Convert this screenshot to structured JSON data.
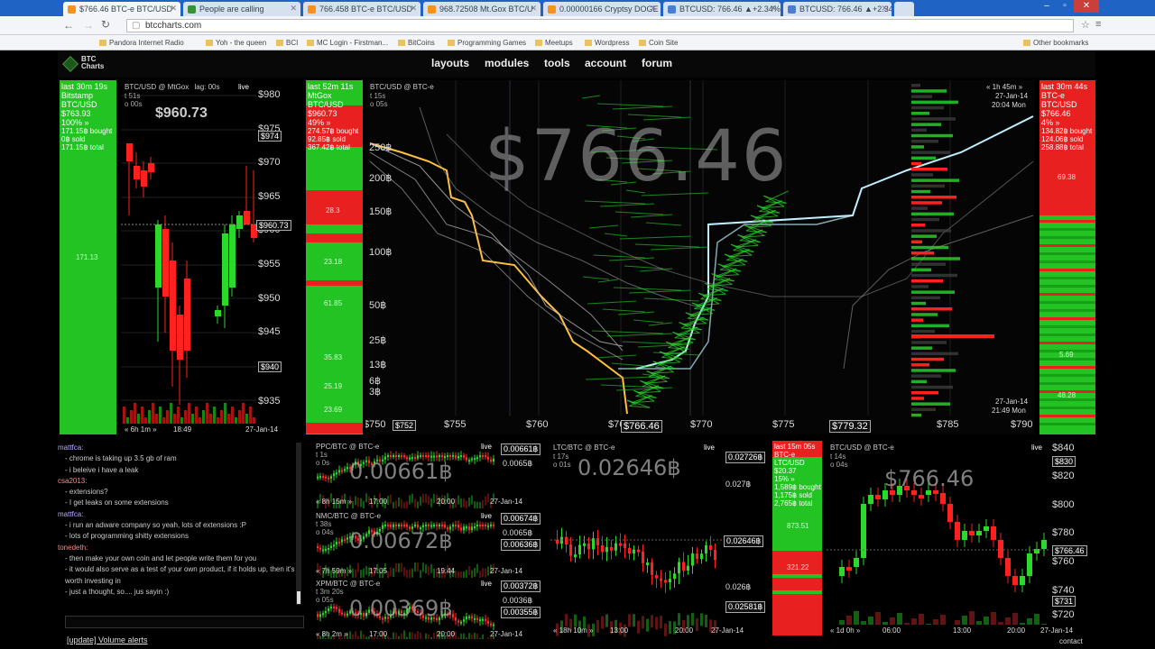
{
  "browser": {
    "tabs": [
      {
        "title": "$766.46 BTC-e BTC/USD"
      },
      {
        "title": "People are calling"
      },
      {
        "title": "766.458 BTC-e BTC/USD"
      },
      {
        "title": "968.72508 Mt.Gox BTC/U"
      },
      {
        "title": "0.00000166 Cryptsy DOGE"
      },
      {
        "title": "BTCUSD: 766.46 ▲+2.34%"
      },
      {
        "title": "BTCUSD: 766.46 ▲+2.34%"
      }
    ],
    "url": "btccharts.com",
    "bookmarks": [
      "Pandora Internet Radio",
      "Yoh - the queen",
      "BCI",
      "MC Login - Firstman...",
      "BitCoins",
      "Programming Games",
      "Meetups",
      "Wordpress",
      "Coin Site"
    ],
    "other_bookmarks": "Other bookmarks",
    "colors": {
      "tabbar": "#1f63c5",
      "chrome": "#f3f5f8"
    }
  },
  "site": {
    "logo_line1": "BTC",
    "logo_line2": "Charts",
    "nav": [
      "layouts",
      "modules",
      "tools",
      "account",
      "forum"
    ]
  },
  "bitstamp_tape": {
    "line1": "last 30m 19s",
    "exchange": "Bitstamp",
    "pair": "BTC/USD",
    "price": "$763.93",
    "pct": "100% »",
    "bought": "171.15฿ bought",
    "sold": "0฿ sold",
    "total": "171.15฿ total",
    "center_value": "171.13"
  },
  "mtgox_chart": {
    "header": "BTC/USD @ MtGox",
    "lag": "lag: 00s",
    "live": "live",
    "t1": "t 51s",
    "t2": "o 00s",
    "price_label": "$960.73",
    "price_box": "$960.73",
    "box_974": "$974",
    "box_940": "$940",
    "yticks": [
      "$980",
      "$975",
      "$970",
      "$965",
      "$960",
      "$955",
      "$950",
      "$945",
      "$940",
      "$935"
    ],
    "footer_left": "« 6h 1m »",
    "footer_mid": "18:49",
    "footer_right": "27-Jan-14"
  },
  "mtgox_tape": {
    "line1": "last 52m 11s",
    "exchange": "MtGox",
    "pair": "BTC/USD",
    "price": "$960.73",
    "pct": "49% »",
    "bought": "274.57฿ bought",
    "sold": "92.85฿ sold",
    "total": "367.42฿ total",
    "bars": [
      "28.3",
      "23.18",
      "61.85",
      "35.83",
      "25.19",
      "23.69"
    ]
  },
  "depth_chart": {
    "header": "BTC/USD @ BTC-e",
    "t1": "t 15s",
    "t2": "o 05s",
    "big_price": "$766.46",
    "time_top": "« 1h 45m »",
    "date_top": "27-Jan-14",
    "time_top2": "20:04 Mon",
    "date_bot": "27-Jan-14",
    "time_bot": "21:49 Mon",
    "y_labels": [
      "250฿",
      "200฿",
      "150฿",
      "100฿",
      "50฿",
      "25฿",
      "13฿",
      "6฿",
      "3฿"
    ],
    "x_labels": [
      "$750",
      "$755",
      "$760",
      "$765",
      "$770",
      "$775",
      "$780",
      "$785",
      "$790"
    ],
    "box_left": "$752",
    "box_mid": "$766.46",
    "box_right": "$779.32"
  },
  "btce_tape": {
    "line1": "last 30m 44s",
    "exchange": "BTC-e",
    "pair": "BTC/USD",
    "price": "$766.46",
    "pct": "4% »",
    "bought": "134.82฿ bought",
    "sold": "124.06฿ sold",
    "total": "258.88฿ total",
    "bars": [
      "69.38",
      "5.69",
      "48.28"
    ]
  },
  "chat": {
    "messages": [
      {
        "user": "mattfca:",
        "alt": false,
        "lines": [
          "- chrome is taking up 3.5 gb of ram",
          "- i beleive i have a leak"
        ]
      },
      {
        "user": "csa2013:",
        "alt": true,
        "lines": [
          "- extensions?",
          "- I get leaks on some extensions"
        ]
      },
      {
        "user": "mattfca:",
        "alt": false,
        "lines": [
          "- i run an adware company so yeah, lots of extensions :P",
          "- lots of programming shitty extensions"
        ]
      },
      {
        "user": "tonedeth:",
        "alt": true,
        "lines": [
          "- then make your own coin and let people write them for you",
          "- it would also serve as a test of your own product, if it holds up, then it's worth investing in",
          "- just a thought, so.... jus sayin :)"
        ]
      }
    ],
    "footer": "[update] Volume alerts"
  },
  "mini_charts": [
    {
      "header": "PPC/BTC @ BTC-e",
      "live": "live",
      "t1": "t 1s",
      "t2": "o 0s",
      "price": "0.00661฿",
      "box_top": "0.00661฿",
      "y1": "0.0065฿",
      "footer_left": "« 8h 15m »",
      "footer_mid1": "17:00",
      "footer_mid2": "20:00",
      "footer_right": "27-Jan-14"
    },
    {
      "header": "NMC/BTC @ BTC-e",
      "live": "live",
      "t1": "t 38s",
      "t2": "o 04s",
      "price": "0.00672฿",
      "box_top": "0.00674฿",
      "y1": "0.0065฿",
      "y2": "0.00636฿",
      "footer_left": "« 7h 59m »",
      "footer_mid1": "17:05",
      "footer_mid2": "19:44",
      "footer_right": "27-Jan-14"
    },
    {
      "header": "XPM/BTC @ BTC-e",
      "live": "live",
      "t1": "t 3m 20s",
      "t2": "o 05s",
      "price": "0.00369฿",
      "box_top": "0.00372฿",
      "y1": "0.0036฿",
      "y2": "0.00355฿",
      "footer_left": "« 8h 2m »",
      "footer_mid1": "17:00",
      "footer_mid2": "20:00",
      "footer_right": "27-Jan-14"
    }
  ],
  "ltc_chart": {
    "header": "LTC/BTC @ BTC-e",
    "live": "live",
    "t1": "t 17s",
    "t2": "o 01s",
    "price": "0.02646฿",
    "box_top": "0.02726฿",
    "y1": "0.027฿",
    "box_mid": "0.02646฿",
    "y2": "0.026฿",
    "box_bot": "0.02581฿",
    "footer_left": "« 18h 10m »",
    "footer_mid1": "13:00",
    "footer_mid2": "20:00",
    "footer_right": "27-Jan-14"
  },
  "ltc_tape": {
    "line1": "last 15m 05s",
    "exchange": "BTC-e",
    "pair": "LTC/USD",
    "price": "$20.37",
    "pct": "15% »",
    "bought": "1,589฿ bought",
    "sold": "1,175฿ sold",
    "total": "2,765฿ total",
    "bar1": "873.51",
    "bar2": "321.22"
  },
  "btce_chart": {
    "header": "BTC/USD @ BTC-e",
    "live": "live",
    "t1": "t 14s",
    "t2": "o 04s",
    "price": "$766.46",
    "yticks": [
      "$840",
      "$830",
      "$820",
      "$800",
      "$780",
      "$766.46",
      "$760",
      "$740",
      "$731",
      "$720"
    ],
    "footer_left": "« 1d 0h »",
    "footer_mid1": "06:00",
    "footer_mid2": "13:00",
    "footer_mid3": "20:00",
    "footer_right": "27-Jan-14",
    "contact": "contact"
  },
  "colors": {
    "green": "#2ad92a",
    "red": "#ff1a1a",
    "yellow": "#ffc040",
    "cyan": "#bfefff"
  }
}
